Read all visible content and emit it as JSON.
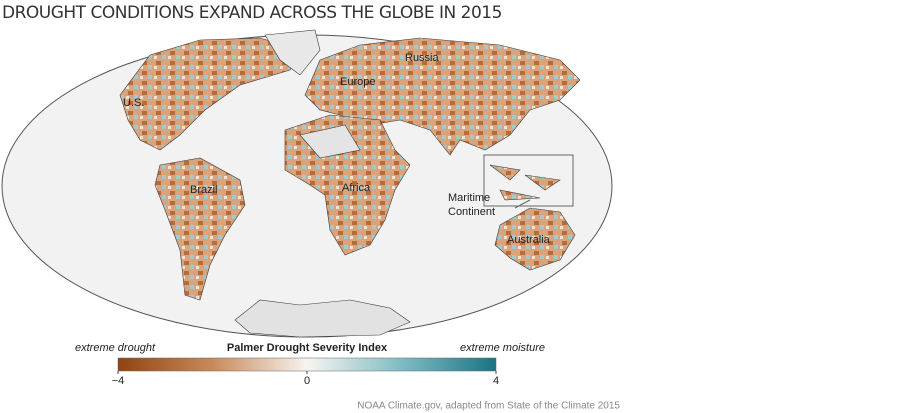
{
  "title": "DROUGHT CONDITIONS EXPAND ACROSS THE GLOBE IN 2015",
  "regions": [
    "Russia",
    "Europe",
    "U.S.",
    "Brazil",
    "Africa",
    "Maritime",
    "Continent",
    "Australia"
  ],
  "colorbar": {
    "title": "Palmer Drought Severity Index",
    "low_label": "extreme drought",
    "high_label": "extreme moisture",
    "lim": [
      -4,
      4
    ],
    "ticks": [
      {
        "value": -4,
        "label": "−4"
      },
      0,
      4
    ]
  },
  "credit": "NOAA Climate.gov, adapted from State of the Climate 2015"
}
